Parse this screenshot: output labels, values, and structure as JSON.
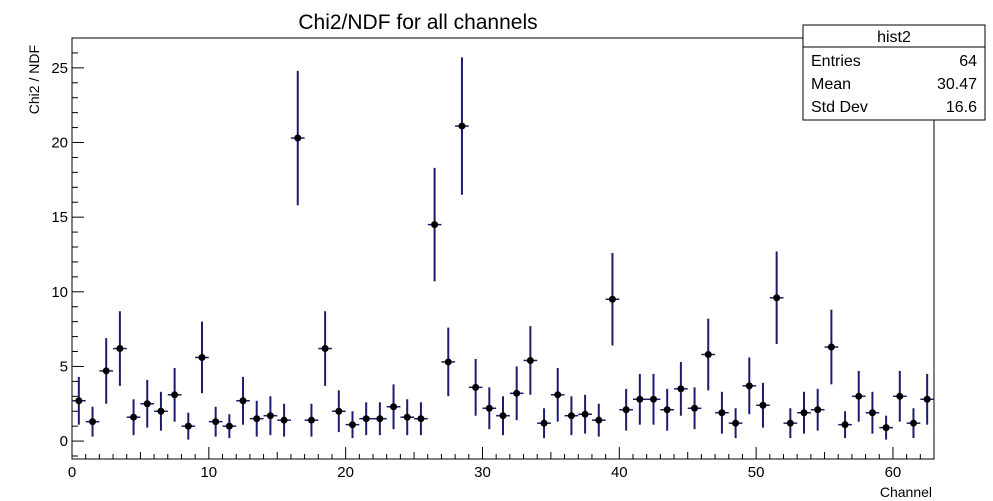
{
  "chart_data": {
    "type": "scatter",
    "title": "Chi2/NDF for all channels",
    "xlabel": "Channel",
    "ylabel": "Chi2 / NDF",
    "xlim": [
      0,
      63
    ],
    "ylim": [
      -1.2,
      27
    ],
    "x_ticks": [
      0,
      10,
      20,
      30,
      40,
      50,
      60
    ],
    "y_ticks": [
      0,
      5,
      10,
      15,
      20,
      25
    ],
    "grid": false,
    "marker_color": "#000000",
    "error_color": "#1c1c6e",
    "series": [
      {
        "x": [
          0.5,
          1.5,
          2.5,
          3.5,
          4.5,
          5.5,
          6.5,
          7.5,
          8.5,
          9.5,
          10.5,
          11.5,
          12.5,
          13.5,
          14.5,
          15.5,
          16.5,
          17.5,
          18.5,
          19.5,
          20.5,
          21.5,
          22.5,
          23.5,
          24.5,
          25.5,
          26.5,
          27.5,
          28.5,
          29.5,
          30.5,
          31.5,
          32.5,
          33.5,
          34.5,
          35.5,
          36.5,
          37.5,
          38.5,
          39.5,
          40.5,
          41.5,
          42.5,
          43.5,
          44.5,
          45.5,
          46.5,
          47.5,
          48.5,
          49.5,
          50.5,
          51.5,
          52.5,
          53.5,
          54.5,
          55.5,
          56.5,
          57.5,
          58.5,
          59.5,
          60.5,
          61.5,
          62.5
        ],
        "y": [
          2.7,
          1.3,
          4.7,
          6.2,
          1.6,
          2.5,
          2.0,
          3.1,
          1.0,
          5.6,
          1.3,
          1.0,
          2.7,
          1.5,
          1.7,
          1.4,
          20.3,
          1.4,
          6.2,
          2.0,
          1.1,
          1.5,
          1.5,
          2.3,
          1.6,
          1.5,
          14.5,
          5.3,
          21.1,
          3.6,
          2.2,
          1.7,
          3.2,
          5.4,
          1.2,
          3.1,
          1.7,
          1.8,
          1.4,
          9.5,
          2.1,
          2.8,
          2.8,
          2.1,
          3.5,
          2.2,
          5.8,
          1.9,
          1.2,
          3.7,
          2.4,
          9.6,
          1.2,
          1.9,
          2.1,
          6.3,
          1.1,
          3.0,
          1.9,
          0.9,
          3.0,
          1.2,
          2.8
        ],
        "yerr": [
          1.6,
          1.0,
          2.2,
          2.5,
          1.2,
          1.6,
          1.3,
          1.8,
          0.9,
          2.4,
          1.0,
          0.8,
          1.6,
          1.2,
          1.3,
          1.1,
          4.5,
          1.1,
          2.5,
          1.4,
          0.9,
          1.1,
          1.1,
          1.5,
          1.2,
          1.1,
          3.8,
          2.3,
          4.6,
          1.9,
          1.4,
          1.3,
          1.8,
          2.3,
          1.0,
          1.8,
          1.3,
          1.3,
          1.1,
          3.1,
          1.4,
          1.7,
          1.7,
          1.4,
          1.8,
          1.4,
          2.4,
          1.4,
          1.0,
          1.9,
          1.5,
          3.1,
          1.0,
          1.4,
          1.4,
          2.5,
          0.9,
          1.7,
          1.4,
          0.8,
          1.7,
          1.0,
          1.7
        ]
      }
    ]
  },
  "stats_box": {
    "title": "hist2",
    "rows": [
      {
        "label": "Entries",
        "value": "64"
      },
      {
        "label": "Mean",
        "value": "30.47"
      },
      {
        "label": "Std Dev",
        "value": "16.6"
      }
    ]
  }
}
